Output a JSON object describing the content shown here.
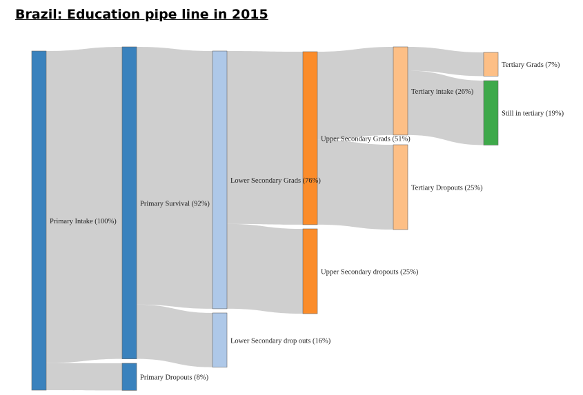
{
  "title": "Brazil: Education pipe line in 2015",
  "nodes": {
    "primary_intake": {
      "label": "Primary Intake (100%)",
      "value": 100,
      "color": "#3a82bd"
    },
    "primary_survival": {
      "label": "Primary Survival (92%)",
      "value": 92,
      "color": "#3a82bd"
    },
    "primary_dropouts": {
      "label": "Primary Dropouts (8%)",
      "value": 8,
      "color": "#3a82bd"
    },
    "lower_secondary_grads": {
      "label": "Lower Secondary Grads (76%)",
      "value": 76,
      "color": "#aec8e8"
    },
    "lower_secondary_dropouts": {
      "label": "Lower Secondary drop outs (16%)",
      "value": 16,
      "color": "#aec8e8"
    },
    "upper_secondary_grads": {
      "label": "Upper Secondary Grads (51%)",
      "value": 51,
      "color": "#fb8c2a"
    },
    "upper_secondary_dropouts": {
      "label": "Upper Secondary dropouts (25%)",
      "value": 25,
      "color": "#fb8c2a"
    },
    "tertiary_intake": {
      "label": "Tertiary intake (26%)",
      "value": 26,
      "color": "#fdbf86"
    },
    "tertiary_dropouts": {
      "label": "Tertiary Dropouts (25%)",
      "value": 25,
      "color": "#fdbf86"
    },
    "tertiary_grads": {
      "label": "Tertiary Grads (7%)",
      "value": 7,
      "color": "#fdbf86"
    },
    "still_in_tertiary": {
      "label": "Still in tertiary (19%)",
      "value": 19,
      "color": "#3ea94a"
    }
  },
  "links": [
    {
      "source": "primary_intake",
      "target": "primary_survival",
      "value": 92
    },
    {
      "source": "primary_intake",
      "target": "primary_dropouts",
      "value": 8
    },
    {
      "source": "primary_survival",
      "target": "lower_secondary_grads",
      "value": 76
    },
    {
      "source": "primary_survival",
      "target": "lower_secondary_dropouts",
      "value": 16
    },
    {
      "source": "lower_secondary_grads",
      "target": "upper_secondary_grads",
      "value": 51
    },
    {
      "source": "lower_secondary_grads",
      "target": "upper_secondary_dropouts",
      "value": 25
    },
    {
      "source": "upper_secondary_grads",
      "target": "tertiary_intake",
      "value": 26
    },
    {
      "source": "upper_secondary_grads",
      "target": "tertiary_dropouts",
      "value": 25
    },
    {
      "source": "tertiary_intake",
      "target": "tertiary_grads",
      "value": 7
    },
    {
      "source": "tertiary_intake",
      "target": "still_in_tertiary",
      "value": 19
    }
  ],
  "colors": {
    "link": "#cfcfcf"
  }
}
